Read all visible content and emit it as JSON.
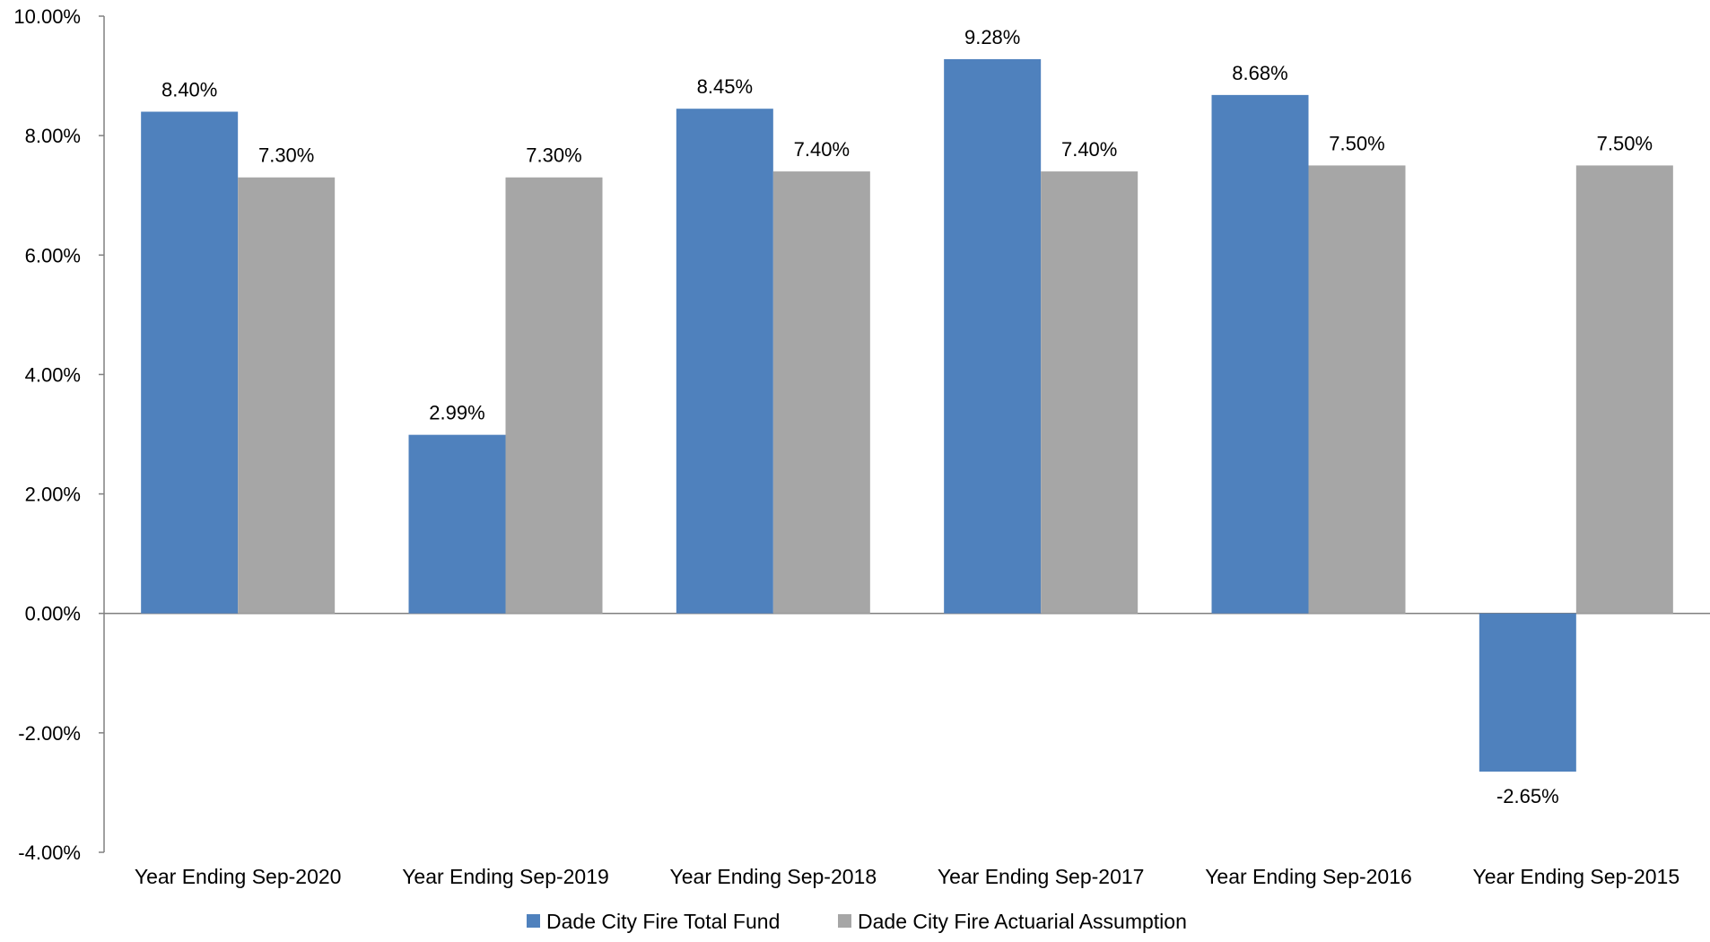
{
  "chart_data": {
    "type": "bar",
    "categories": [
      "Year Ending Sep-2020",
      "Year Ending Sep-2019",
      "Year Ending Sep-2018",
      "Year Ending Sep-2017",
      "Year Ending Sep-2016",
      "Year Ending Sep-2015"
    ],
    "series": [
      {
        "name": "Dade City Fire Total Fund",
        "values": [
          8.4,
          2.99,
          8.45,
          9.28,
          8.68,
          -2.65
        ],
        "labels": [
          "8.40%",
          "2.99%",
          "8.45%",
          "9.28%",
          "8.68%",
          "-2.65%"
        ],
        "color": "#4f81bd"
      },
      {
        "name": "Dade City Fire Actuarial Assumption",
        "values": [
          7.3,
          7.3,
          7.4,
          7.4,
          7.5,
          7.5
        ],
        "labels": [
          "7.30%",
          "7.30%",
          "7.40%",
          "7.40%",
          "7.50%",
          "7.50%"
        ],
        "color": "#a6a6a6"
      }
    ],
    "y_ticks": [
      "10.00%",
      "8.00%",
      "6.00%",
      "4.00%",
      "2.00%",
      "0.00%",
      "-2.00%",
      "-4.00%"
    ],
    "y_tick_values": [
      10,
      8,
      6,
      4,
      2,
      0,
      -2,
      -4
    ],
    "ylim": [
      -4,
      10
    ],
    "legend_position": "bottom",
    "grid": false
  }
}
